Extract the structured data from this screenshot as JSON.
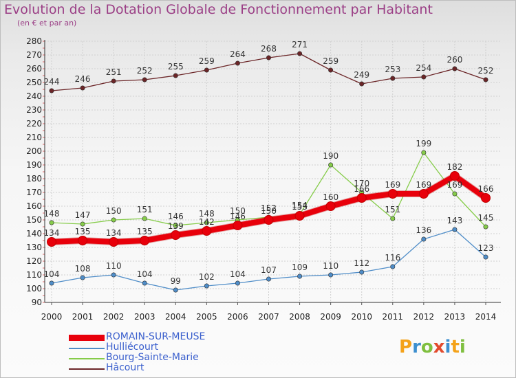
{
  "title": "Evolution de la Dotation Globale de Fonctionnement par Habitant",
  "subtitle": "(en € et par an)",
  "logo": {
    "text": "Proxiti",
    "letters": [
      {
        "ch": "P",
        "color": "#f4a21a"
      },
      {
        "ch": "r",
        "color": "#3d8fcf"
      },
      {
        "ch": "o",
        "color": "#7fbf3f"
      },
      {
        "ch": "x",
        "color": "#e24a2d"
      },
      {
        "ch": "i",
        "color": "#3d8fcf"
      },
      {
        "ch": "t",
        "color": "#f4a21a"
      },
      {
        "ch": "i",
        "color": "#7fbf3f"
      }
    ]
  },
  "chart_data": {
    "type": "line",
    "x": [
      2000,
      2001,
      2002,
      2003,
      2004,
      2005,
      2006,
      2007,
      2008,
      2009,
      2010,
      2011,
      2012,
      2013,
      2014
    ],
    "ylim": [
      90,
      280
    ],
    "yticks": [
      90,
      100,
      110,
      120,
      130,
      140,
      150,
      160,
      170,
      180,
      190,
      200,
      210,
      220,
      230,
      240,
      250,
      260,
      270,
      280
    ],
    "grid": true,
    "legend_position": "bottom-left",
    "series": [
      {
        "name": "ROMAIN-SUR-MEUSE",
        "color": "#e8000b",
        "values": [
          134,
          135,
          134,
          135,
          139,
          142,
          146,
          150,
          153,
          160,
          166,
          169,
          169,
          182,
          166
        ]
      },
      {
        "name": "Hulliécourt",
        "color": "#4f8dc8",
        "values": [
          104,
          108,
          110,
          104,
          99,
          102,
          104,
          107,
          109,
          110,
          112,
          116,
          136,
          143,
          123
        ]
      },
      {
        "name": "Bourg-Sainte-Marie",
        "color": "#86cc4a",
        "values": [
          148,
          147,
          150,
          151,
          146,
          148,
          150,
          152,
          154,
          190,
          170,
          151,
          199,
          169,
          145
        ]
      },
      {
        "name": "Hâcourt",
        "color": "#6b2527",
        "values": [
          244,
          246,
          251,
          252,
          255,
          259,
          264,
          268,
          271,
          259,
          249,
          253,
          254,
          260,
          252
        ]
      }
    ]
  }
}
